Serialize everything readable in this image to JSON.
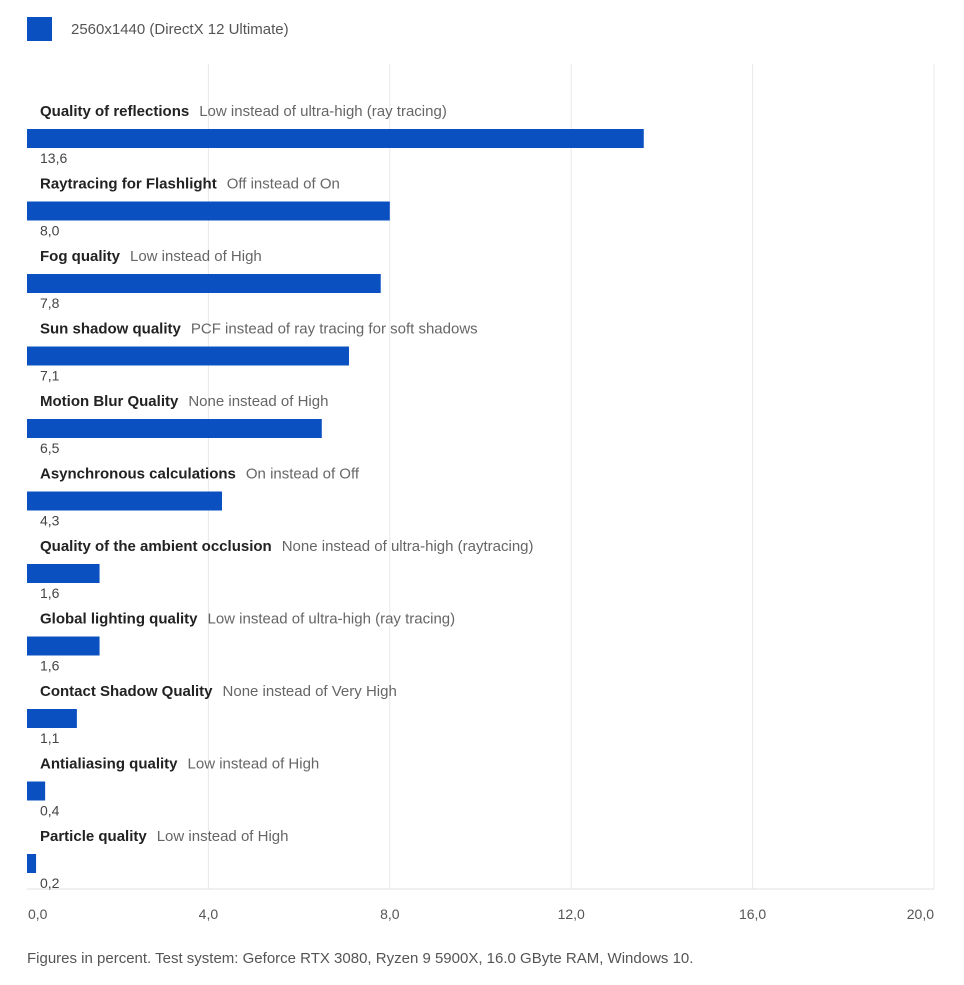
{
  "legend": {
    "label": "2560x1440 (DirectX 12 Ultimate)",
    "color": "#0a50c0"
  },
  "footnote": "Figures in percent. Test system: Geforce RTX 3080, Ryzen 9 5900X, 16.0 GByte RAM, Windows 10.",
  "chart_data": {
    "type": "bar",
    "orientation": "horizontal",
    "categories": [
      "Quality of reflections",
      "Raytracing for Flashlight",
      "Fog quality",
      "Sun shadow quality",
      "Motion Blur Quality",
      "Asynchronous calculations",
      "Quality of the ambient occlusion",
      "Global lighting quality",
      "Contact Shadow Quality",
      "Antialiasing quality",
      "Particle quality"
    ],
    "descriptions": [
      "Low instead of ultra-high (ray tracing)",
      "Off instead of On",
      "Low instead of High",
      "PCF instead of ray tracing for soft shadows",
      "None instead of High",
      "On instead of Off",
      "None instead of ultra-high (raytracing)",
      "Low instead of ultra-high (ray tracing)",
      "None instead of Very High",
      "Low instead of High",
      "Low instead of High"
    ],
    "values": [
      13.6,
      8.0,
      7.8,
      7.1,
      6.5,
      4.3,
      1.6,
      1.6,
      1.1,
      0.4,
      0.2
    ],
    "value_labels": [
      "13,6",
      "8,0",
      "7,8",
      "7,1",
      "6,5",
      "4,3",
      "1,6",
      "1,6",
      "1,1",
      "0,4",
      "0,2"
    ],
    "series": [
      {
        "name": "2560x1440 (DirectX 12 Ultimate)",
        "values": [
          13.6,
          8.0,
          7.8,
          7.1,
          6.5,
          4.3,
          1.6,
          1.6,
          1.1,
          0.4,
          0.2
        ]
      }
    ],
    "xlim": [
      0,
      20
    ],
    "x_ticks": [
      0,
      4,
      8,
      12,
      16,
      20
    ],
    "x_tick_labels": [
      "0,0",
      "4,0",
      "8,0",
      "12,0",
      "16,0",
      "20,0"
    ],
    "grid": true,
    "legend_position": "top-left",
    "colors": {
      "bar": "#0a50c0",
      "grid": "#e8e8e8",
      "category_text": "#222222",
      "description_text": "#666666",
      "value_text": "#444444"
    }
  }
}
